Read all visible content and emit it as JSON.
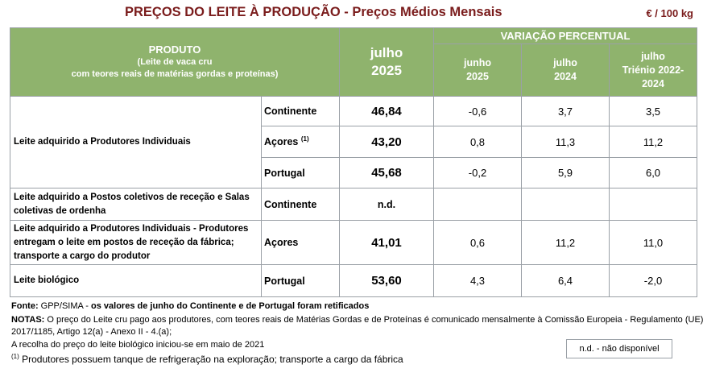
{
  "title": {
    "main": "PREÇOS DO LEITE À PRODUÇÃO",
    "sep": " - ",
    "sub": "Preços Médios Mensais"
  },
  "unit": "€ / 100 kg",
  "header": {
    "produto": "PRODUTO",
    "produto_sub1": "(Leite de vaca cru",
    "produto_sub2": "com teores reais de matérias gordas e proteínas)",
    "current_month": "julho",
    "current_year": "2025",
    "variacao": "VARIAÇÃO PERCENTUAL",
    "col1_month": "junho",
    "col1_year": "2025",
    "col2_month": "julho",
    "col2_year": "2024",
    "col3_month": "julho",
    "col3_year": "Triénio 2022-2024"
  },
  "rows": [
    {
      "product": "Leite adquirido a Produtores Individuais",
      "region": "Continente",
      "value": "46,84",
      "v1": "-0,6",
      "v2": "3,7",
      "v3": "3,5"
    },
    {
      "region": "Açores",
      "region_sup": "(1)",
      "value": "43,20",
      "v1": "0,8",
      "v2": "11,3",
      "v3": "11,2"
    },
    {
      "region": "Portugal",
      "value": "45,68",
      "v1": "-0,2",
      "v2": "5,9",
      "v3": "6,0"
    },
    {
      "product": "Leite adquirido a Postos coletivos de receção e Salas coletivas de ordenha",
      "region": "Continente",
      "value": "n.d.",
      "v1": "",
      "v2": "",
      "v3": ""
    },
    {
      "product": "Leite adquirido a Produtores Individuais - Produtores entregam o leite em postos de receção da fábrica; transporte a cargo do produtor",
      "region": "Açores",
      "value": "41,01",
      "v1": "0,6",
      "v2": "11,2",
      "v3": "11,0"
    },
    {
      "product": "Leite biológico",
      "region": "Portugal",
      "value": "53,60",
      "v1": "4,3",
      "v2": "6,4",
      "v3": "-2,0"
    }
  ],
  "footer": {
    "fonte_label": "Fonte:",
    "fonte_text": " GPP/SIMA - ",
    "fonte_bold": "os valores de junho do Continente e de Portugal foram retificados",
    "notas_label": "NOTAS:",
    "notas_text1": " O preço do Leite cru pago aos produtores, com teores reais de Matérias Gordas e de Proteínas é comunicado mensalmente à Comissão Europeia - Regulamento (UE) nº",
    "notas_text2": "2017/1185, Artigo 12(a) - Anexo II - 4.(a);",
    "biologico_note": "A recolha do preço do leite biológico iniciou-se em maio de 2021",
    "note1_sup": "(1)",
    "note1_text": " Produtores possuem tanque de refrigeração na exploração; transporte a cargo da fábrica",
    "legend": "n.d. - não disponível"
  },
  "colors": {
    "header_green": "#8fb36d",
    "title_red": "#7a1c1c",
    "border": "#9aa0a6"
  }
}
